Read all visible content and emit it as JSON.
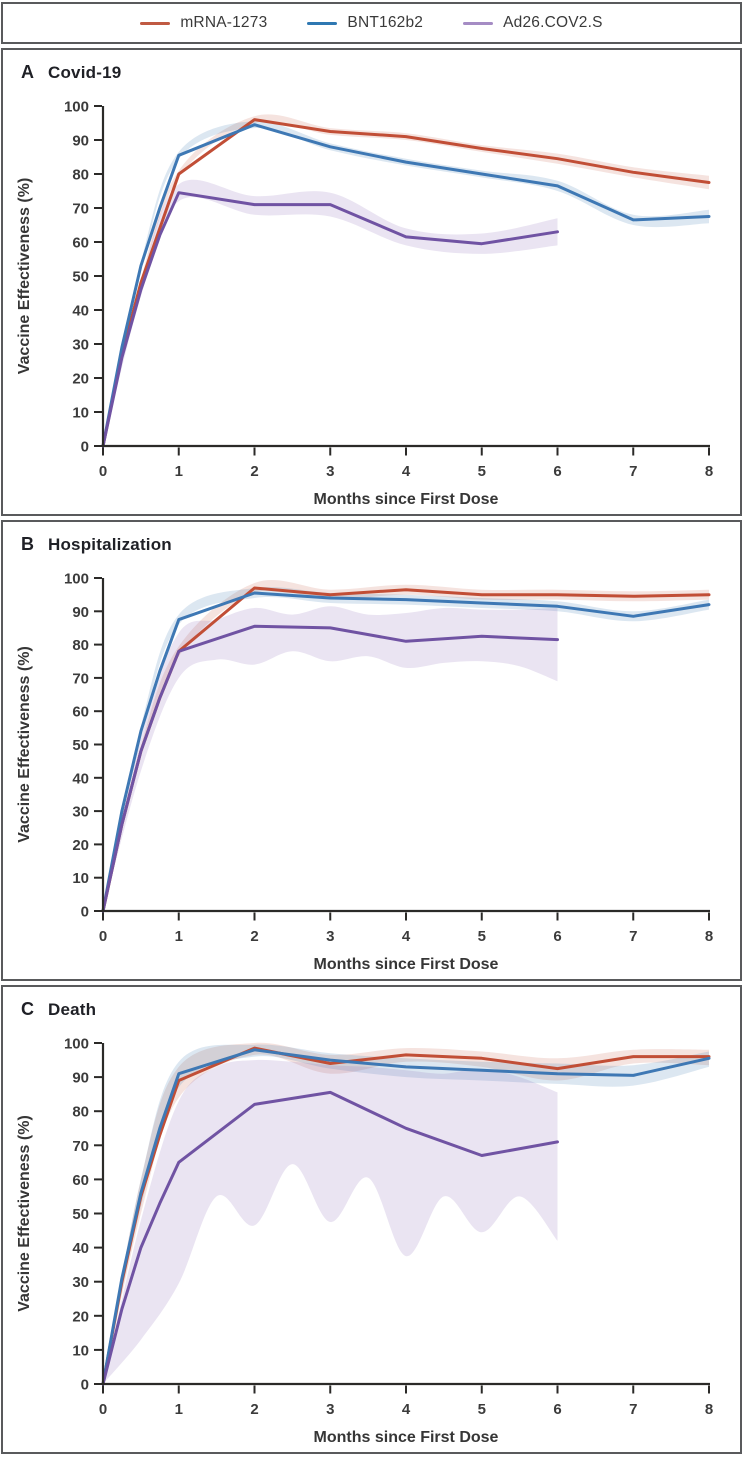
{
  "legend": {
    "items": [
      {
        "label": "mRNA-1273",
        "color": "#C05A43"
      },
      {
        "label": "BNT162b2",
        "color": "#2F78B2"
      },
      {
        "label": "Ad26.COV2.S",
        "color": "#A58CC4"
      }
    ]
  },
  "panels": [
    {
      "letter": "A",
      "title": "Covid-19"
    },
    {
      "letter": "B",
      "title": "Hospitalization"
    },
    {
      "letter": "C",
      "title": "Death"
    }
  ],
  "axis_style": {
    "axis_color": "#2B2A28",
    "tick_text_color": "#3B3B3B"
  },
  "chart_data": [
    {
      "type": "line",
      "title": "Covid-19",
      "xlabel": "Months since First Dose",
      "ylabel": "Vaccine Effectiveness (%)",
      "xlim": [
        0,
        8
      ],
      "ylim": [
        0,
        100
      ],
      "xticks": [
        0,
        1,
        2,
        3,
        4,
        5,
        6,
        7,
        8
      ],
      "yticks": [
        0,
        10,
        20,
        30,
        40,
        50,
        60,
        70,
        80,
        90,
        100
      ],
      "grid": false,
      "legend_position": "top",
      "series": [
        {
          "name": "mRNA-1273",
          "color": "#C14E36",
          "band_color": "#C14E36",
          "band_opacity": 0.16,
          "x": [
            0,
            0.25,
            0.5,
            0.75,
            1,
            2,
            3,
            4,
            5,
            6,
            7,
            8
          ],
          "y": [
            0,
            27,
            48,
            64,
            80,
            96,
            92.5,
            91,
            87.5,
            84.5,
            80.5,
            77.5
          ],
          "band": {
            "x": [
              0,
              0.5,
              1,
              2,
              3,
              4,
              5,
              6,
              7,
              8
            ],
            "lower": [
              0,
              47,
              79,
              95,
              91.5,
              90,
              86.5,
              83,
              79,
              75.5
            ],
            "upper": [
              0,
              49,
              81,
              97,
              93.5,
              92,
              88.5,
              86,
              82,
              79.5
            ]
          }
        },
        {
          "name": "BNT162b2",
          "color": "#3E78B4",
          "band_color": "#3E78B4",
          "band_opacity": 0.18,
          "x": [
            0,
            0.25,
            0.5,
            0.75,
            1,
            2,
            3,
            4,
            5,
            6,
            7,
            8
          ],
          "y": [
            0,
            29,
            53,
            70,
            85.5,
            94.5,
            88,
            83.5,
            80,
            76.5,
            66.5,
            67.5
          ],
          "band": {
            "x": [
              0,
              0.5,
              1,
              2,
              3,
              4,
              5,
              6,
              7,
              8
            ],
            "lower": [
              0,
              52,
              84.5,
              93.5,
              87,
              82.5,
              79,
              75,
              65,
              65.5
            ],
            "upper": [
              0,
              54,
              86.5,
              95.5,
              89,
              84.5,
              81,
              78,
              68,
              69.5
            ]
          }
        },
        {
          "name": "Ad26.COV2.S",
          "color": "#7053A3",
          "band_color": "#8B6BB5",
          "band_opacity": 0.18,
          "x": [
            0,
            0.25,
            0.5,
            0.75,
            1,
            2,
            3,
            4,
            5,
            6
          ],
          "y": [
            0,
            26,
            46,
            62,
            74.5,
            71,
            71,
            61.5,
            59.5,
            63
          ],
          "band": {
            "x": [
              0,
              0.5,
              1,
              2,
              3,
              4,
              5,
              6
            ],
            "lower": [
              0,
              44,
              72,
              68,
              67.5,
              59,
              56.5,
              59
            ],
            "upper": [
              0,
              48,
              77,
              73.5,
              74.5,
              64,
              62.5,
              67
            ]
          }
        }
      ]
    },
    {
      "type": "line",
      "title": "Hospitalization",
      "xlabel": "Months since First Dose",
      "ylabel": "Vaccine Effectiveness (%)",
      "xlim": [
        0,
        8
      ],
      "ylim": [
        0,
        100
      ],
      "xticks": [
        0,
        1,
        2,
        3,
        4,
        5,
        6,
        7,
        8
      ],
      "yticks": [
        0,
        10,
        20,
        30,
        40,
        50,
        60,
        70,
        80,
        90,
        100
      ],
      "grid": false,
      "legend_position": "top",
      "series": [
        {
          "name": "mRNA-1273",
          "color": "#C14E36",
          "band_color": "#C14E36",
          "band_opacity": 0.16,
          "x": [
            0,
            0.25,
            0.5,
            0.75,
            1,
            2,
            3,
            4,
            5,
            6,
            7,
            8
          ],
          "y": [
            0,
            26,
            48,
            64,
            78,
            97,
            95,
            96.5,
            95,
            95,
            94.5,
            95
          ],
          "band": {
            "x": [
              0,
              0.5,
              1,
              2,
              3,
              4,
              5,
              6,
              7,
              8
            ],
            "lower": [
              0,
              46.5,
              76.5,
              95.5,
              93.5,
              95,
              93.5,
              93.5,
              93,
              93.5
            ],
            "upper": [
              0,
              49.5,
              79.5,
              98.5,
              96.5,
              98,
              96.5,
              96.5,
              96,
              96.5
            ]
          }
        },
        {
          "name": "BNT162b2",
          "color": "#3E78B4",
          "band_color": "#3E78B4",
          "band_opacity": 0.18,
          "x": [
            0,
            0.25,
            0.5,
            0.75,
            1,
            2,
            3,
            4,
            5,
            6,
            7,
            8
          ],
          "y": [
            0,
            30,
            54,
            72,
            87.5,
            95.5,
            94,
            93.5,
            92.5,
            91.5,
            88.5,
            92
          ],
          "band": {
            "x": [
              0,
              0.5,
              1,
              2,
              3,
              4,
              5,
              6,
              7,
              8
            ],
            "lower": [
              0,
              52.5,
              86,
              94,
              92.5,
              92,
              91,
              90,
              87,
              90.5
            ],
            "upper": [
              0,
              55.5,
              89,
              97,
              95.5,
              95,
              94,
              93,
              90,
              93.5
            ]
          }
        },
        {
          "name": "Ad26.COV2.S",
          "color": "#7053A3",
          "band_color": "#8B6BB5",
          "band_opacity": 0.18,
          "x": [
            0,
            0.25,
            0.5,
            0.75,
            1,
            2,
            3,
            4,
            5,
            6
          ],
          "y": [
            0,
            26,
            48,
            64,
            78,
            85.5,
            85,
            81,
            82.5,
            81.5
          ],
          "band": {
            "x": [
              0,
              0.5,
              1,
              1.5,
              2,
              2.5,
              3,
              3.5,
              4,
              4.5,
              5,
              5.5,
              6
            ],
            "lower": [
              0,
              42,
              70,
              75.5,
              74,
              78,
              75,
              76.5,
              73,
              74.5,
              75,
              73.5,
              69
            ],
            "upper": [
              0,
              54,
              83.5,
              87.5,
              91,
              89,
              91.5,
              89,
              89.5,
              91,
              90.5,
              90.5,
              91
            ]
          }
        }
      ]
    },
    {
      "type": "line",
      "title": "Death",
      "xlabel": "Months since First Dose",
      "ylabel": "Vaccine Effectiveness (%)",
      "xlim": [
        0,
        8
      ],
      "ylim": [
        0,
        100
      ],
      "xticks": [
        0,
        1,
        2,
        3,
        4,
        5,
        6,
        7,
        8
      ],
      "yticks": [
        0,
        10,
        20,
        30,
        40,
        50,
        60,
        70,
        80,
        90,
        100
      ],
      "grid": false,
      "legend_position": "top",
      "series": [
        {
          "name": "mRNA-1273",
          "color": "#C14E36",
          "band_color": "#C14E36",
          "band_opacity": 0.16,
          "x": [
            0,
            0.25,
            0.5,
            0.75,
            1,
            2,
            3,
            4,
            5,
            6,
            7,
            8
          ],
          "y": [
            0,
            30,
            55,
            73,
            89,
            98.5,
            94,
            96.5,
            95.5,
            92.5,
            96,
            96
          ],
          "band": {
            "x": [
              0,
              0.5,
              1,
              2,
              3,
              4,
              5,
              6,
              7,
              8
            ],
            "lower": [
              0,
              50,
              84,
              96.5,
              91,
              94.5,
              93,
              89,
              94,
              93.5
            ],
            "upper": [
              0,
              60,
              93,
              100,
              96.5,
              98.5,
              97.5,
              95.5,
              98,
              98
            ]
          }
        },
        {
          "name": "BNT162b2",
          "color": "#3E78B4",
          "band_color": "#3E78B4",
          "band_opacity": 0.18,
          "x": [
            0,
            0.25,
            0.5,
            0.75,
            1,
            2,
            3,
            4,
            5,
            6,
            7,
            8
          ],
          "y": [
            0,
            31,
            56,
            75,
            91,
            98,
            95,
            93,
            92,
            91,
            90.5,
            95.5
          ],
          "band": {
            "x": [
              0,
              0.5,
              1,
              2,
              3,
              4,
              5,
              6,
              7,
              8
            ],
            "lower": [
              0,
              52,
              87,
              96,
              92.5,
              90,
              89,
              88,
              87.5,
              93
            ],
            "upper": [
              0,
              60,
              94.5,
              99.5,
              97,
              95.5,
              94.5,
              94,
              93.5,
              97.5
            ]
          }
        },
        {
          "name": "Ad26.COV2.S",
          "color": "#7053A3",
          "band_color": "#8B6BB5",
          "band_opacity": 0.18,
          "x": [
            0,
            0.25,
            0.5,
            0.75,
            1,
            2,
            3,
            4,
            5,
            6
          ],
          "y": [
            0,
            22,
            40,
            53,
            65,
            82,
            85.5,
            75,
            67,
            71
          ],
          "band": {
            "x": [
              0,
              0.5,
              1,
              1.5,
              2,
              2.5,
              3,
              3.5,
              4,
              4.5,
              5,
              5.5,
              6
            ],
            "lower": [
              0,
              13,
              29.5,
              55,
              46.5,
              64.5,
              47.5,
              60.5,
              37.5,
              55,
              44.5,
              55,
              42
            ],
            "upper": [
              0,
              48,
              83,
              93,
              95,
              94.5,
              93.5,
              93,
              92,
              91,
              92.5,
              90,
              85.5
            ]
          }
        }
      ]
    }
  ]
}
